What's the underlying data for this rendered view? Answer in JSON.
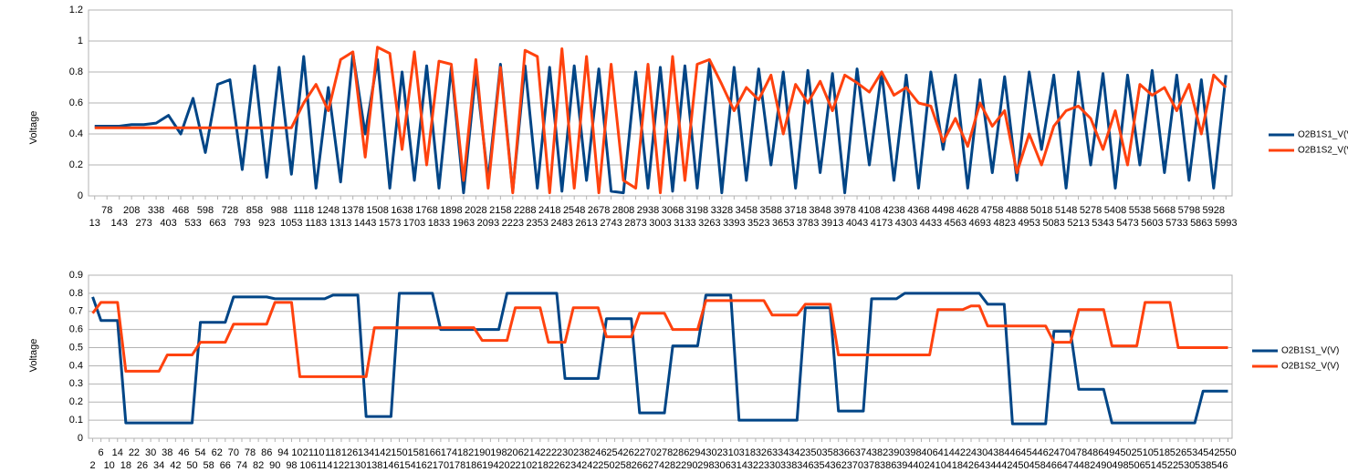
{
  "chart_data": [
    {
      "type": "line",
      "y_label": "Voltage",
      "categories": [
        "13",
        "78",
        "143",
        "208",
        "273",
        "338",
        "403",
        "468",
        "533",
        "598",
        "663",
        "728",
        "793",
        "858",
        "923",
        "988",
        "1053",
        "1118",
        "1183",
        "1248",
        "1313",
        "1378",
        "1443",
        "1508",
        "1573",
        "1638",
        "1703",
        "1768",
        "1833",
        "1898",
        "1963",
        "2028",
        "2093",
        "2158",
        "2223",
        "2288",
        "2353",
        "2418",
        "2483",
        "2548",
        "2613",
        "2678",
        "2743",
        "2808",
        "2873",
        "2938",
        "3003",
        "3068",
        "3133",
        "3198",
        "3263",
        "3328",
        "3393",
        "3458",
        "3523",
        "3588",
        "3653",
        "3718",
        "3783",
        "3848",
        "3913",
        "3978",
        "4043",
        "4108",
        "4173",
        "4238",
        "4303",
        "4368",
        "4433",
        "4498",
        "4563",
        "4628",
        "4693",
        "4758",
        "4823",
        "4888",
        "4953",
        "5018",
        "5083",
        "5148",
        "5213",
        "5278",
        "5343",
        "5408",
        "5473",
        "5538",
        "5603",
        "5668",
        "5733",
        "5798",
        "5863",
        "5928",
        "5993"
      ],
      "series": [
        {
          "name": "O2B1S1_V(V)",
          "color": "#004586",
          "values": [
            0.45,
            0.45,
            0.45,
            0.46,
            0.46,
            0.47,
            0.52,
            0.4,
            0.63,
            0.28,
            0.72,
            0.75,
            0.17,
            0.84,
            0.12,
            0.83,
            0.14,
            0.9,
            0.05,
            0.7,
            0.09,
            0.92,
            0.4,
            0.88,
            0.05,
            0.8,
            0.1,
            0.84,
            0.05,
            0.83,
            0.02,
            0.8,
            0.1,
            0.85,
            0.03,
            0.84,
            0.05,
            0.83,
            0.03,
            0.84,
            0.1,
            0.82,
            0.03,
            0.02,
            0.8,
            0.05,
            0.83,
            0.03,
            0.84,
            0.05,
            0.86,
            0.02,
            0.83,
            0.1,
            0.82,
            0.2,
            0.8,
            0.05,
            0.81,
            0.15,
            0.79,
            0.02,
            0.82,
            0.2,
            0.8,
            0.1,
            0.78,
            0.05,
            0.8,
            0.3,
            0.78,
            0.05,
            0.75,
            0.15,
            0.77,
            0.1,
            0.8,
            0.3,
            0.78,
            0.05,
            0.8,
            0.2,
            0.79,
            0.05,
            0.78,
            0.2,
            0.81,
            0.15,
            0.78,
            0.1,
            0.75,
            0.05,
            0.78
          ]
        },
        {
          "name": "O2B1S2_V(V)",
          "color": "#ff420e",
          "values": [
            0.44,
            0.44,
            0.44,
            0.44,
            0.44,
            0.44,
            0.44,
            0.44,
            0.44,
            0.44,
            0.44,
            0.44,
            0.44,
            0.44,
            0.44,
            0.44,
            0.44,
            0.6,
            0.72,
            0.55,
            0.88,
            0.93,
            0.25,
            0.96,
            0.92,
            0.3,
            0.93,
            0.2,
            0.87,
            0.85,
            0.1,
            0.88,
            0.05,
            0.83,
            0.02,
            0.94,
            0.9,
            0.02,
            0.95,
            0.05,
            0.9,
            0.02,
            0.85,
            0.1,
            0.05,
            0.85,
            0.02,
            0.9,
            0.1,
            0.85,
            0.88,
            0.72,
            0.55,
            0.7,
            0.62,
            0.78,
            0.4,
            0.72,
            0.6,
            0.74,
            0.55,
            0.78,
            0.73,
            0.67,
            0.8,
            0.65,
            0.7,
            0.6,
            0.58,
            0.35,
            0.5,
            0.32,
            0.6,
            0.45,
            0.55,
            0.15,
            0.4,
            0.2,
            0.45,
            0.55,
            0.58,
            0.5,
            0.3,
            0.55,
            0.2,
            0.72,
            0.65,
            0.7,
            0.55,
            0.72,
            0.4,
            0.78,
            0.7
          ]
        }
      ],
      "ylim": [
        0,
        1.2
      ],
      "yticks": [
        0,
        0.2,
        0.4,
        0.6,
        0.8,
        1,
        1.2
      ],
      "grid": true,
      "legend": "right"
    },
    {
      "type": "line",
      "y_label": "Voltage",
      "categories": [
        "2",
        "6",
        "10",
        "14",
        "18",
        "22",
        "26",
        "30",
        "34",
        "38",
        "42",
        "46",
        "50",
        "54",
        "58",
        "62",
        "66",
        "70",
        "74",
        "78",
        "82",
        "86",
        "90",
        "94",
        "98",
        "102",
        "106",
        "110",
        "114",
        "118",
        "122",
        "126",
        "130",
        "134",
        "138",
        "142",
        "146",
        "150",
        "154",
        "158",
        "162",
        "166",
        "170",
        "174",
        "178",
        "182",
        "186",
        "190",
        "194",
        "198",
        "202",
        "206",
        "210",
        "214",
        "218",
        "222",
        "226",
        "230",
        "234",
        "238",
        "242",
        "246",
        "250",
        "254",
        "258",
        "262",
        "266",
        "270",
        "274",
        "278",
        "282",
        "286",
        "290",
        "294",
        "298",
        "302",
        "306",
        "310",
        "314",
        "318",
        "322",
        "326",
        "330",
        "334",
        "338",
        "342",
        "346",
        "350",
        "354",
        "358",
        "362",
        "366",
        "370",
        "374",
        "378",
        "382",
        "386",
        "390",
        "394",
        "398",
        "402",
        "406",
        "410",
        "414",
        "418",
        "422",
        "426",
        "430",
        "434",
        "438",
        "442",
        "446",
        "450",
        "454",
        "458",
        "462",
        "466",
        "470",
        "474",
        "478",
        "482",
        "486",
        "490",
        "494",
        "498",
        "502",
        "506",
        "510",
        "514",
        "518",
        "522",
        "526",
        "530",
        "534",
        "538",
        "542",
        "546",
        "550"
      ],
      "series": [
        {
          "name": "O2B1S1_V(V)",
          "color": "#004586",
          "values": [
            0.78,
            0.65,
            0.65,
            0.65,
            0.085,
            0.085,
            0.085,
            0.085,
            0.085,
            0.085,
            0.085,
            0.085,
            0.085,
            0.64,
            0.64,
            0.64,
            0.64,
            0.78,
            0.78,
            0.78,
            0.78,
            0.78,
            0.77,
            0.77,
            0.77,
            0.77,
            0.77,
            0.77,
            0.77,
            0.79,
            0.79,
            0.79,
            0.79,
            0.12,
            0.12,
            0.12,
            0.12,
            0.8,
            0.8,
            0.8,
            0.8,
            0.8,
            0.6,
            0.6,
            0.6,
            0.6,
            0.6,
            0.6,
            0.6,
            0.6,
            0.8,
            0.8,
            0.8,
            0.8,
            0.8,
            0.8,
            0.8,
            0.33,
            0.33,
            0.33,
            0.33,
            0.33,
            0.66,
            0.66,
            0.66,
            0.66,
            0.14,
            0.14,
            0.14,
            0.14,
            0.51,
            0.51,
            0.51,
            0.51,
            0.79,
            0.79,
            0.79,
            0.79,
            0.1,
            0.1,
            0.1,
            0.1,
            0.1,
            0.1,
            0.1,
            0.1,
            0.72,
            0.72,
            0.72,
            0.72,
            0.15,
            0.15,
            0.15,
            0.15,
            0.77,
            0.77,
            0.77,
            0.77,
            0.8,
            0.8,
            0.8,
            0.8,
            0.8,
            0.8,
            0.8,
            0.8,
            0.8,
            0.8,
            0.74,
            0.74,
            0.74,
            0.08,
            0.08,
            0.08,
            0.08,
            0.08,
            0.59,
            0.59,
            0.59,
            0.27,
            0.27,
            0.27,
            0.27,
            0.085,
            0.085,
            0.085,
            0.085,
            0.085,
            0.085,
            0.085,
            0.085,
            0.085,
            0.085,
            0.085,
            0.26,
            0.26,
            0.26,
            0.26
          ]
        },
        {
          "name": "O2B1S2_V(V)",
          "color": "#ff420e",
          "values": [
            0.69,
            0.75,
            0.75,
            0.75,
            0.37,
            0.37,
            0.37,
            0.37,
            0.37,
            0.46,
            0.46,
            0.46,
            0.46,
            0.53,
            0.53,
            0.53,
            0.53,
            0.63,
            0.63,
            0.63,
            0.63,
            0.63,
            0.75,
            0.75,
            0.75,
            0.34,
            0.34,
            0.34,
            0.34,
            0.34,
            0.34,
            0.34,
            0.34,
            0.34,
            0.61,
            0.61,
            0.61,
            0.61,
            0.61,
            0.61,
            0.61,
            0.61,
            0.61,
            0.61,
            0.61,
            0.61,
            0.61,
            0.54,
            0.54,
            0.54,
            0.54,
            0.72,
            0.72,
            0.72,
            0.72,
            0.53,
            0.53,
            0.53,
            0.72,
            0.72,
            0.72,
            0.72,
            0.56,
            0.56,
            0.56,
            0.56,
            0.69,
            0.69,
            0.69,
            0.69,
            0.6,
            0.6,
            0.6,
            0.6,
            0.76,
            0.76,
            0.76,
            0.76,
            0.76,
            0.76,
            0.76,
            0.76,
            0.68,
            0.68,
            0.68,
            0.68,
            0.74,
            0.74,
            0.74,
            0.74,
            0.46,
            0.46,
            0.46,
            0.46,
            0.46,
            0.46,
            0.46,
            0.46,
            0.46,
            0.46,
            0.46,
            0.46,
            0.71,
            0.71,
            0.71,
            0.71,
            0.73,
            0.73,
            0.62,
            0.62,
            0.62,
            0.62,
            0.62,
            0.62,
            0.62,
            0.62,
            0.53,
            0.53,
            0.53,
            0.71,
            0.71,
            0.71,
            0.71,
            0.51,
            0.51,
            0.51,
            0.51,
            0.75,
            0.75,
            0.75,
            0.75,
            0.5,
            0.5,
            0.5,
            0.5,
            0.5,
            0.5,
            0.5
          ]
        }
      ],
      "ylim": [
        0,
        0.9
      ],
      "yticks": [
        0,
        0.1,
        0.2,
        0.3,
        0.4,
        0.5,
        0.6,
        0.7,
        0.8,
        0.9
      ],
      "grid": true,
      "legend": "right"
    }
  ]
}
